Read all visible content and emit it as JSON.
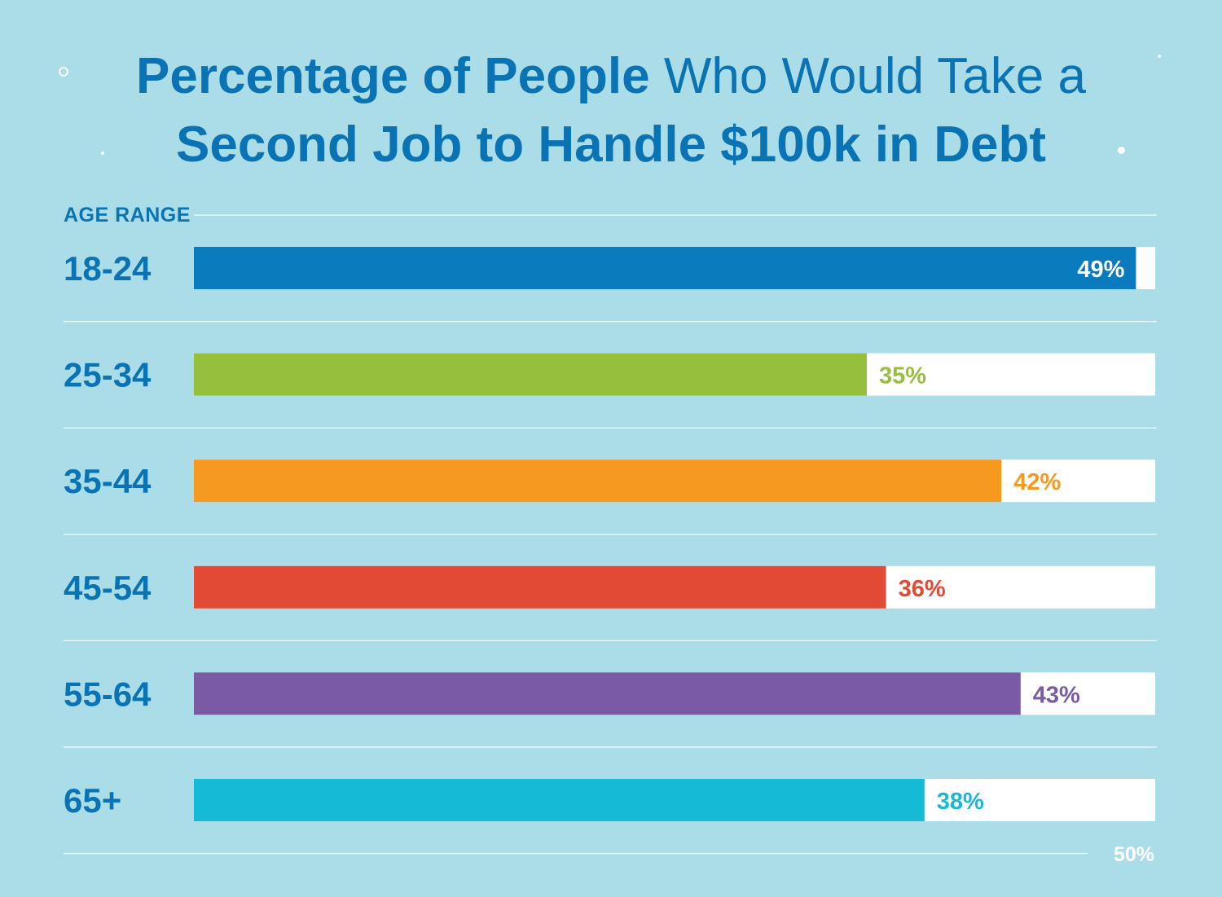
{
  "chart_data": {
    "type": "bar",
    "orientation": "horizontal",
    "title_bold_1": "Percentage of People",
    "title_light": "Who Would Take a",
    "title_bold_2": "Second Job to Handle $100k in Debt",
    "ylabel": "AGE RANGE",
    "categories": [
      "18-24",
      "25-34",
      "35-44",
      "45-54",
      "55-64",
      "65+"
    ],
    "values": [
      49,
      35,
      42,
      36,
      43,
      38
    ],
    "value_labels": [
      "49%",
      "35%",
      "42%",
      "36%",
      "43%",
      "38%"
    ],
    "colors": [
      "#0a7cbd",
      "#97bf3e",
      "#f6991f",
      "#e24a35",
      "#7a5aa5",
      "#14bad6"
    ],
    "xlim": [
      0,
      50
    ],
    "xtick_label": "50%",
    "grid": true
  }
}
